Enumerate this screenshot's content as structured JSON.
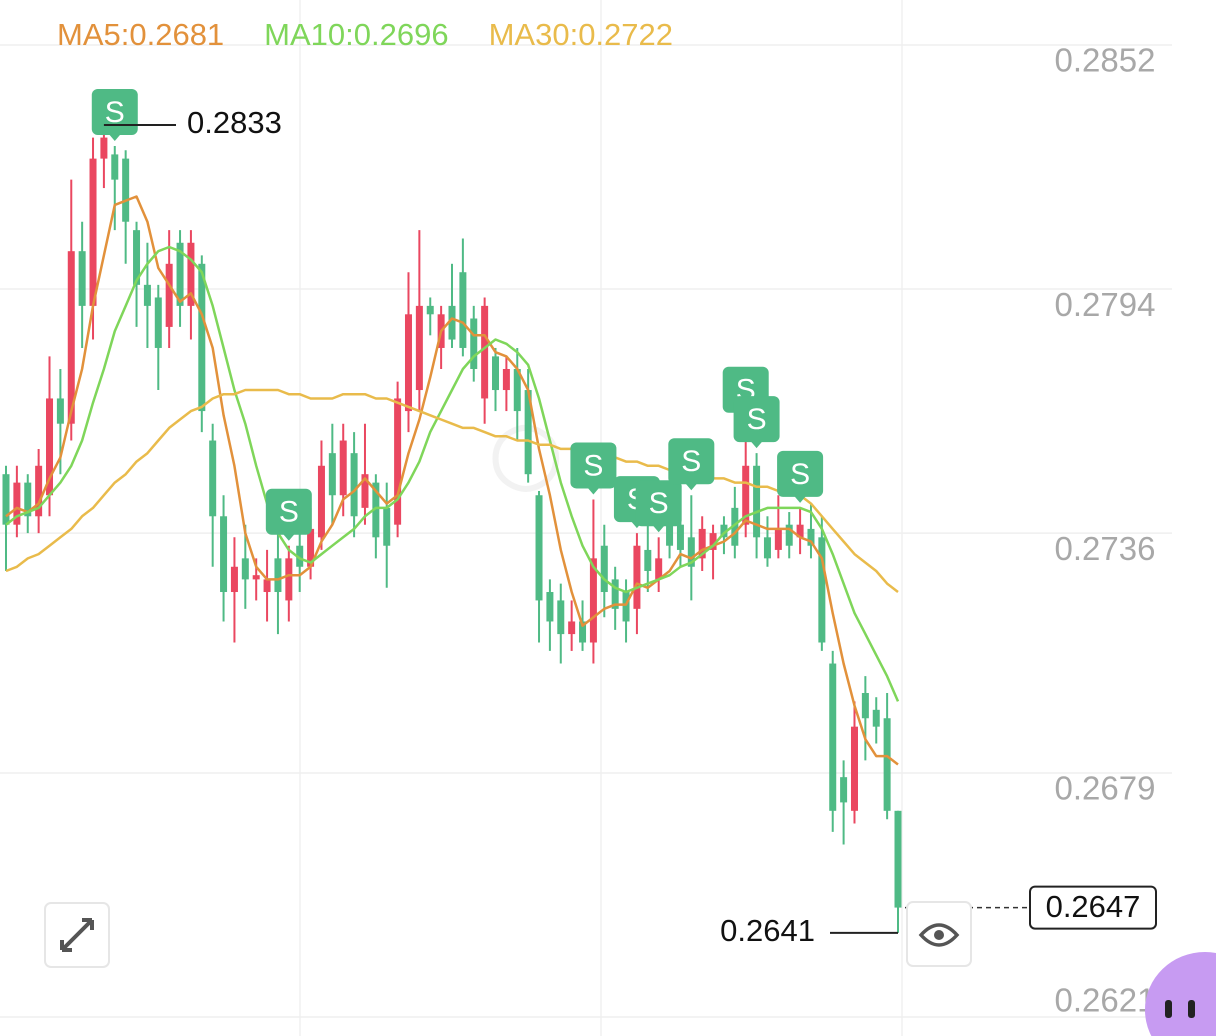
{
  "chart_data": {
    "type": "candlestick",
    "open": [
      0.275,
      0.2738,
      0.2748,
      0.274,
      0.2745,
      0.2768,
      0.2762,
      0.2803,
      0.279,
      0.2825,
      0.2826,
      0.2825,
      0.2808,
      0.2795,
      0.2792,
      0.2785,
      0.2805,
      0.279,
      0.28,
      0.2758,
      0.274,
      0.2722,
      0.273,
      0.2725,
      0.2722,
      0.273,
      0.272,
      0.2733,
      0.2728,
      0.2735,
      0.2755,
      0.2745,
      0.2755,
      0.2742,
      0.2748,
      0.2742,
      0.2738,
      0.2765,
      0.277,
      0.279,
      0.278,
      0.279,
      0.2798,
      0.2787,
      0.2768,
      0.2778,
      0.277,
      0.2775,
      0.277,
      0.2745,
      0.2722,
      0.272,
      0.2712,
      0.2715,
      0.271,
      0.2733,
      0.2725,
      0.2722,
      0.2718,
      0.2732,
      0.2725,
      0.2738,
      0.2738,
      0.2735,
      0.273,
      0.2732,
      0.2738,
      0.2742,
      0.2738,
      0.2752,
      0.2735,
      0.2732,
      0.2738,
      0.2735,
      0.2737,
      0.2735,
      0.2705,
      0.2678,
      0.267,
      0.2698,
      0.2694,
      0.2692,
      0.267
    ],
    "high": [
      0.2752,
      0.2752,
      0.275,
      0.2756,
      0.2778,
      0.2775,
      0.282,
      0.281,
      0.283,
      0.2833,
      0.2828,
      0.2827,
      0.281,
      0.2805,
      0.2795,
      0.2808,
      0.2808,
      0.2808,
      0.2802,
      0.2762,
      0.2745,
      0.2735,
      0.2738,
      0.273,
      0.2732,
      0.2738,
      0.2733,
      0.274,
      0.2742,
      0.2758,
      0.2762,
      0.2762,
      0.276,
      0.2762,
      0.275,
      0.2748,
      0.2772,
      0.2798,
      0.2808,
      0.2792,
      0.279,
      0.28,
      0.2806,
      0.279,
      0.2792,
      0.278,
      0.2778,
      0.278,
      0.2775,
      0.2746,
      0.2725,
      0.2724,
      0.272,
      0.272,
      0.2744,
      0.2738,
      0.2728,
      0.2725,
      0.2736,
      0.2738,
      0.2735,
      0.2746,
      0.2745,
      0.2745,
      0.274,
      0.2738,
      0.274,
      0.2747,
      0.2762,
      0.2755,
      0.274,
      0.2745,
      0.2741,
      0.2742,
      0.2743,
      0.274,
      0.2708,
      0.2682,
      0.2696,
      0.2702,
      0.2697,
      0.2698,
      0.267
    ],
    "low": [
      0.2727,
      0.2735,
      0.2736,
      0.2736,
      0.274,
      0.275,
      0.2758,
      0.278,
      0.2782,
      0.2818,
      0.2808,
      0.28,
      0.2785,
      0.278,
      0.277,
      0.278,
      0.2785,
      0.2782,
      0.276,
      0.2728,
      0.2715,
      0.271,
      0.2718,
      0.272,
      0.2715,
      0.2712,
      0.2715,
      0.2722,
      0.2725,
      0.2732,
      0.2738,
      0.274,
      0.2735,
      0.2738,
      0.273,
      0.2723,
      0.2735,
      0.276,
      0.2765,
      0.2783,
      0.2775,
      0.278,
      0.2778,
      0.2772,
      0.2762,
      0.2765,
      0.2765,
      0.2758,
      0.2748,
      0.271,
      0.2708,
      0.2705,
      0.2708,
      0.2708,
      0.2705,
      0.2716,
      0.2713,
      0.271,
      0.2712,
      0.2722,
      0.2722,
      0.273,
      0.2728,
      0.272,
      0.2727,
      0.2725,
      0.2731,
      0.273,
      0.2735,
      0.273,
      0.2728,
      0.273,
      0.273,
      0.2731,
      0.273,
      0.2708,
      0.2665,
      0.2662,
      0.2667,
      0.2682,
      0.2686,
      0.2668,
      0.2641
    ],
    "close": [
      0.2738,
      0.2748,
      0.274,
      0.2752,
      0.2768,
      0.2762,
      0.2803,
      0.279,
      0.2825,
      0.283,
      0.282,
      0.281,
      0.2795,
      0.279,
      0.278,
      0.28,
      0.279,
      0.2805,
      0.2765,
      0.274,
      0.2722,
      0.2728,
      0.2725,
      0.2726,
      0.2725,
      0.2722,
      0.273,
      0.2728,
      0.2737,
      0.2752,
      0.2745,
      0.2758,
      0.274,
      0.275,
      0.2735,
      0.2733,
      0.2768,
      0.2788,
      0.279,
      0.2788,
      0.2788,
      0.2782,
      0.278,
      0.2775,
      0.279,
      0.277,
      0.2775,
      0.2765,
      0.275,
      0.272,
      0.2715,
      0.2712,
      0.2715,
      0.271,
      0.273,
      0.2722,
      0.2718,
      0.2715,
      0.2733,
      0.2727,
      0.273,
      0.2733,
      0.2732,
      0.2728,
      0.2737,
      0.2736,
      0.2735,
      0.2733,
      0.2752,
      0.2735,
      0.273,
      0.2737,
      0.2733,
      0.2738,
      0.2733,
      0.271,
      0.267,
      0.2672,
      0.269,
      0.2692,
      0.269,
      0.267,
      0.2647
    ],
    "up_color": "#ea4760",
    "down_color": "#4fba85",
    "series": [
      {
        "name": "MA5:0.2681",
        "color": "#e2913b",
        "values": [
          0.274,
          0.2742,
          0.2741,
          0.2743,
          0.2749,
          0.2754,
          0.2765,
          0.2775,
          0.279,
          0.2802,
          0.2814,
          0.2815,
          0.2816,
          0.281,
          0.2799,
          0.2795,
          0.2791,
          0.2793,
          0.2788,
          0.278,
          0.2764,
          0.2752,
          0.2736,
          0.2728,
          0.2725,
          0.2725,
          0.2726,
          0.2726,
          0.2728,
          0.2734,
          0.2738,
          0.2744,
          0.2746,
          0.2749,
          0.2746,
          0.2743,
          0.2745,
          0.2755,
          0.2763,
          0.2773,
          0.2784,
          0.2787,
          0.2786,
          0.2783,
          0.2783,
          0.2779,
          0.2778,
          0.2775,
          0.277,
          0.2756,
          0.2745,
          0.2732,
          0.2722,
          0.2714,
          0.2716,
          0.2718,
          0.2719,
          0.2719,
          0.2724,
          0.2723,
          0.2725,
          0.2727,
          0.2731,
          0.273,
          0.2732,
          0.2733,
          0.2734,
          0.2736,
          0.2739,
          0.2738,
          0.2737,
          0.2737,
          0.2737,
          0.2735,
          0.2734,
          0.273,
          0.2717,
          0.2705,
          0.2695,
          0.2687,
          0.2683,
          0.2683,
          0.2681
        ]
      },
      {
        "name": "MA10:0.2696",
        "color": "#7fd65a",
        "values": [
          0.2738,
          0.274,
          0.2741,
          0.2742,
          0.2745,
          0.2748,
          0.2752,
          0.2758,
          0.2767,
          0.2775,
          0.2784,
          0.279,
          0.2796,
          0.28,
          0.2803,
          0.2804,
          0.2803,
          0.2801,
          0.2798,
          0.279,
          0.278,
          0.277,
          0.2762,
          0.2752,
          0.2743,
          0.2736,
          0.2732,
          0.273,
          0.2729,
          0.2731,
          0.2733,
          0.2735,
          0.2737,
          0.274,
          0.2742,
          0.2742,
          0.2744,
          0.2748,
          0.2753,
          0.276,
          0.2765,
          0.277,
          0.2775,
          0.2778,
          0.278,
          0.2782,
          0.2781,
          0.2779,
          0.2776,
          0.2768,
          0.2758,
          0.2748,
          0.274,
          0.2733,
          0.2728,
          0.2725,
          0.2723,
          0.2722,
          0.2723,
          0.2724,
          0.2725,
          0.2726,
          0.2728,
          0.2729,
          0.2731,
          0.2733,
          0.2736,
          0.2738,
          0.274,
          0.2741,
          0.2742,
          0.2742,
          0.2742,
          0.2742,
          0.2741,
          0.2737,
          0.2731,
          0.2724,
          0.2717,
          0.2712,
          0.2707,
          0.2702,
          0.2696
        ]
      },
      {
        "name": "MA30:0.2722",
        "color": "#e9bb4b",
        "values": [
          0.2727,
          0.2728,
          0.273,
          0.2731,
          0.2733,
          0.2735,
          0.2737,
          0.274,
          0.2742,
          0.2745,
          0.2748,
          0.275,
          0.2753,
          0.2755,
          0.2758,
          0.2761,
          0.2763,
          0.2765,
          0.2766,
          0.2768,
          0.2769,
          0.2769,
          0.277,
          0.277,
          0.277,
          0.277,
          0.2769,
          0.2769,
          0.2768,
          0.2768,
          0.2768,
          0.2769,
          0.2769,
          0.2769,
          0.2768,
          0.2768,
          0.2767,
          0.2766,
          0.2765,
          0.2764,
          0.2763,
          0.2762,
          0.2761,
          0.2761,
          0.276,
          0.2759,
          0.2759,
          0.2758,
          0.2758,
          0.2757,
          0.2757,
          0.2756,
          0.2756,
          0.2755,
          0.2755,
          0.2754,
          0.2754,
          0.2753,
          0.2753,
          0.2752,
          0.2752,
          0.2751,
          0.2751,
          0.275,
          0.275,
          0.2749,
          0.2749,
          0.2748,
          0.2748,
          0.2747,
          0.2747,
          0.2746,
          0.2746,
          0.2745,
          0.2743,
          0.274,
          0.2737,
          0.2734,
          0.2731,
          0.2729,
          0.2727,
          0.2724,
          0.2722
        ]
      }
    ],
    "ylim": [
      0.2621,
      0.2852
    ],
    "yticks": [
      0.2852,
      0.2794,
      0.2736,
      0.2679,
      0.2621
    ],
    "grid": true,
    "high_label": 0.2833,
    "low_label": 0.2641,
    "last_price": 0.2647,
    "sell_markers": {
      "label": "S",
      "color": "#4fba85",
      "candles": [
        10,
        26,
        54,
        58,
        60,
        63,
        68,
        69,
        73
      ]
    }
  }
}
